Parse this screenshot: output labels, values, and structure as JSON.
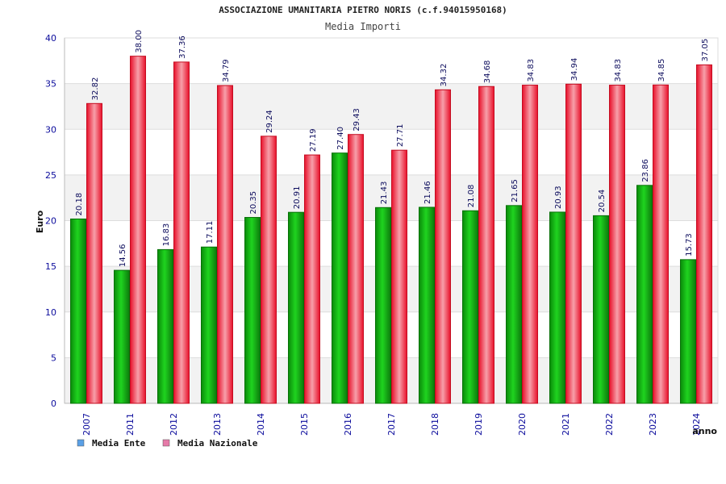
{
  "colors": {
    "ente": "#18b818",
    "nazionale": "#e8283a",
    "legend_ente": "#5aa0e6",
    "legend_nazionale": "#e67aa8",
    "tick": "#0b0b9c",
    "band": "#f2f2f2",
    "grid": "#dddddd"
  },
  "chart_data": {
    "type": "bar",
    "title": "ASSOCIAZIONE UMANITARIA PIETRO NORIS (c.f.94015950168)",
    "subtitle": "Media Importi",
    "xlabel": "anno",
    "ylabel": "Euro",
    "ylim": [
      0,
      40
    ],
    "yticks": [
      0,
      5,
      10,
      15,
      20,
      25,
      30,
      35,
      40
    ],
    "categories": [
      "2007",
      "2011",
      "2012",
      "2013",
      "2014",
      "2015",
      "2016",
      "2017",
      "2018",
      "2019",
      "2020",
      "2021",
      "2022",
      "2023",
      "2024"
    ],
    "series": [
      {
        "name": "Media Ente",
        "values": [
          20.18,
          14.56,
          16.83,
          17.11,
          20.35,
          20.91,
          27.4,
          21.43,
          21.46,
          21.08,
          21.65,
          20.93,
          20.54,
          23.86,
          15.73
        ],
        "labels": [
          "20.18",
          "14.56",
          "16.83",
          "17.11",
          "20.35",
          "20.91",
          "27.40",
          "21.43",
          "21.46",
          "21.08",
          "21.65",
          "20.93",
          "20.54",
          "23.86",
          "15.73"
        ]
      },
      {
        "name": "Media Nazionale",
        "values": [
          32.82,
          38.0,
          37.36,
          34.79,
          29.24,
          27.19,
          29.43,
          27.71,
          34.32,
          34.68,
          34.83,
          34.94,
          34.83,
          34.85,
          37.05
        ],
        "labels": [
          "32.82",
          "38.00",
          "37.36",
          "34.79",
          "29.24",
          "27.19",
          "29.43",
          "27.71",
          "34.32",
          "34.68",
          "34.83",
          "34.94",
          "34.83",
          "34.85",
          "37.05"
        ]
      }
    ],
    "legend": [
      "Media Ente",
      "Media Nazionale"
    ],
    "legend_position": "bottom-left",
    "grid": true
  }
}
